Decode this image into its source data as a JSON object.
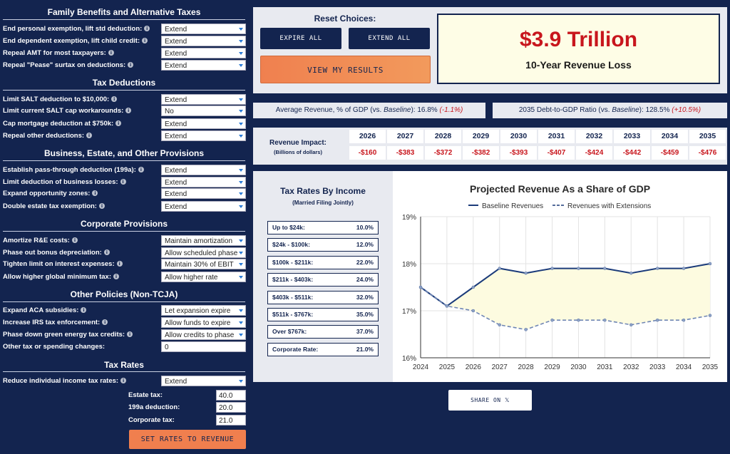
{
  "sections": {
    "family": {
      "title": "Family Benefits and Alternative Taxes",
      "rows": [
        {
          "label": "End personal exemption, lift std deduction:",
          "value": "Extend"
        },
        {
          "label": "End dependent exemption, lift child credit:",
          "value": "Extend"
        },
        {
          "label": "Repeal AMT for most taxpayers:",
          "value": "Extend"
        },
        {
          "label": "Repeal \"Pease\" surtax on deductions:",
          "value": "Extend"
        }
      ]
    },
    "deductions": {
      "title": "Tax Deductions",
      "rows": [
        {
          "label": "Limit SALT deduction to $10,000:",
          "value": "Extend"
        },
        {
          "label": "Limit current SALT cap workarounds:",
          "value": "No"
        },
        {
          "label": "Cap mortgage deduction at $750k:",
          "value": "Extend"
        },
        {
          "label": "Repeal other deductions:",
          "value": "Extend"
        }
      ]
    },
    "business": {
      "title": "Business, Estate, and Other Provisions",
      "rows": [
        {
          "label": "Establish pass-through deduction (199a):",
          "value": "Extend"
        },
        {
          "label": "Limit deduction of business losses:",
          "value": "Extend"
        },
        {
          "label": "Expand opportunity zones:",
          "value": "Extend"
        },
        {
          "label": "Double estate tax exemption:",
          "value": "Extend"
        }
      ]
    },
    "corporate": {
      "title": "Corporate Provisions",
      "rows": [
        {
          "label": "Amortize R&E costs:",
          "value": "Maintain amortization"
        },
        {
          "label": "Phase out bonus depreciation:",
          "value": "Allow scheduled phase"
        },
        {
          "label": "Tighten limit on interest expenses:",
          "value": "Maintain 30% of EBIT"
        },
        {
          "label": "Allow higher global minimum tax:",
          "value": "Allow higher rate"
        }
      ]
    },
    "other": {
      "title": "Other Policies (Non-TCJA)",
      "rows": [
        {
          "label": "Expand ACA subsidies:",
          "value": "Let expansion expire"
        },
        {
          "label": "Increase IRS tax enforcement:",
          "value": "Allow funds to expire"
        },
        {
          "label": "Phase down green energy tax credits:",
          "value": "Allow credits to phase"
        }
      ],
      "text_row": {
        "label": "Other tax or spending changes:",
        "value": "0"
      }
    },
    "taxrates": {
      "title": "Tax Rates",
      "row": {
        "label": "Reduce individual income tax rates:",
        "value": "Extend"
      },
      "inputs": [
        {
          "label": "Estate tax:",
          "value": "40.0"
        },
        {
          "label": "199a deduction:",
          "value": "20.0"
        },
        {
          "label": "Corporate tax:",
          "value": "21.0"
        }
      ],
      "button": "SET RATES TO REVENUE NEUTRAL"
    }
  },
  "reset": {
    "title": "Reset Choices:",
    "expire_all": "EXPIRE ALL",
    "extend_all": "EXTEND ALL",
    "view_results": "VIEW MY RESULTS"
  },
  "result": {
    "amount": "$3.9 Trillion",
    "label": "10-Year Revenue Loss"
  },
  "stats": {
    "avg_revenue": {
      "label": "Average Revenue, % of GDP (vs. ",
      "baseline": "Baseline",
      "close": "): ",
      "value": "16.8%",
      "change": "(-1.1%)"
    },
    "debt_ratio": {
      "label": "2035 Debt-to-GDP Ratio (vs. ",
      "baseline": "Baseline",
      "close": "): ",
      "value": "128.5%",
      "change": "(+10.5%)"
    }
  },
  "revenue_impact": {
    "title": "Revenue Impact:",
    "subtitle": "(Billions of dollars)",
    "years": [
      "2026",
      "2027",
      "2028",
      "2029",
      "2030",
      "2031",
      "2032",
      "2033",
      "2034",
      "2035"
    ],
    "values": [
      "-$160",
      "-$383",
      "-$372",
      "-$382",
      "-$393",
      "-$407",
      "-$424",
      "-$442",
      "-$459",
      "-$476"
    ]
  },
  "tax_rates": {
    "title": "Tax Rates By Income",
    "subtitle": "(Married Filing Jointly)",
    "brackets": [
      {
        "bracket": "Up to $24k:",
        "rate": "10.0%"
      },
      {
        "bracket": "$24k - $100k:",
        "rate": "12.0%"
      },
      {
        "bracket": "$100k - $211k:",
        "rate": "22.0%"
      },
      {
        "bracket": "$211k - $403k:",
        "rate": "24.0%"
      },
      {
        "bracket": "$403k - $511k:",
        "rate": "32.0%"
      },
      {
        "bracket": "$511k - $767k:",
        "rate": "35.0%"
      },
      {
        "bracket": "Over $767k:",
        "rate": "37.0%"
      },
      {
        "bracket": "Corporate Rate:",
        "rate": "21.0%"
      }
    ]
  },
  "share": {
    "label": "SHARE ON 𝕏"
  },
  "colors": {
    "navy": "#13244f",
    "orange": "#f07f4e",
    "red": "#c8161d",
    "panel": "#e8eaf0",
    "fill": "#fdfbe0"
  },
  "chart_data": {
    "type": "line",
    "title": "Projected Revenue As a Share of GDP",
    "xlabel": "",
    "ylabel": "",
    "x": [
      2024,
      2025,
      2026,
      2027,
      2028,
      2029,
      2030,
      2031,
      2032,
      2033,
      2034,
      2035
    ],
    "ylim": [
      16,
      19
    ],
    "yticks": [
      "16%",
      "17%",
      "18%",
      "19%"
    ],
    "grid": true,
    "legend": "top",
    "series": [
      {
        "name": "Baseline Revenues",
        "style": "solid",
        "values": [
          17.5,
          17.1,
          17.5,
          17.9,
          17.8,
          17.9,
          17.9,
          17.9,
          17.8,
          17.9,
          17.9,
          18.0
        ]
      },
      {
        "name": "Revenues with Extensions",
        "style": "dashed",
        "values": [
          17.5,
          17.1,
          17.0,
          16.7,
          16.6,
          16.8,
          16.8,
          16.8,
          16.7,
          16.8,
          16.8,
          16.9
        ]
      }
    ]
  }
}
